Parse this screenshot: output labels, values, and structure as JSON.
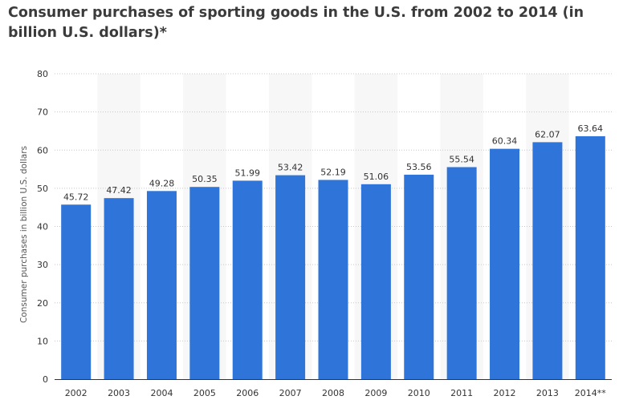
{
  "chart_data": {
    "type": "bar",
    "title": "Consumer purchases of sporting goods in the U.S. from 2002 to 2014 (in billion U.S. dollars)*",
    "xlabel": "",
    "ylabel": "Consumer purchases in billion U.S. dollars",
    "categories": [
      "2002",
      "2003",
      "2004",
      "2005",
      "2006",
      "2007",
      "2008",
      "2009",
      "2010",
      "2011",
      "2012",
      "2013",
      "2014**"
    ],
    "values": [
      45.72,
      47.42,
      49.28,
      50.35,
      51.99,
      53.42,
      52.19,
      51.06,
      53.56,
      55.54,
      60.34,
      62.07,
      63.64
    ],
    "value_labels": [
      "45.72",
      "47.42",
      "49.28",
      "50.35",
      "51.99",
      "53.42",
      "52.19",
      "51.06",
      "53.56",
      "55.54",
      "60.34",
      "62.07",
      "63.64"
    ],
    "ylim": [
      0,
      80
    ],
    "yticks": [
      0,
      10,
      20,
      30,
      40,
      50,
      60,
      70,
      80
    ],
    "grid": true,
    "bar_color": "#2f75d9",
    "band_color": "#f7f7f7",
    "grid_color": "#c8c8c8"
  }
}
